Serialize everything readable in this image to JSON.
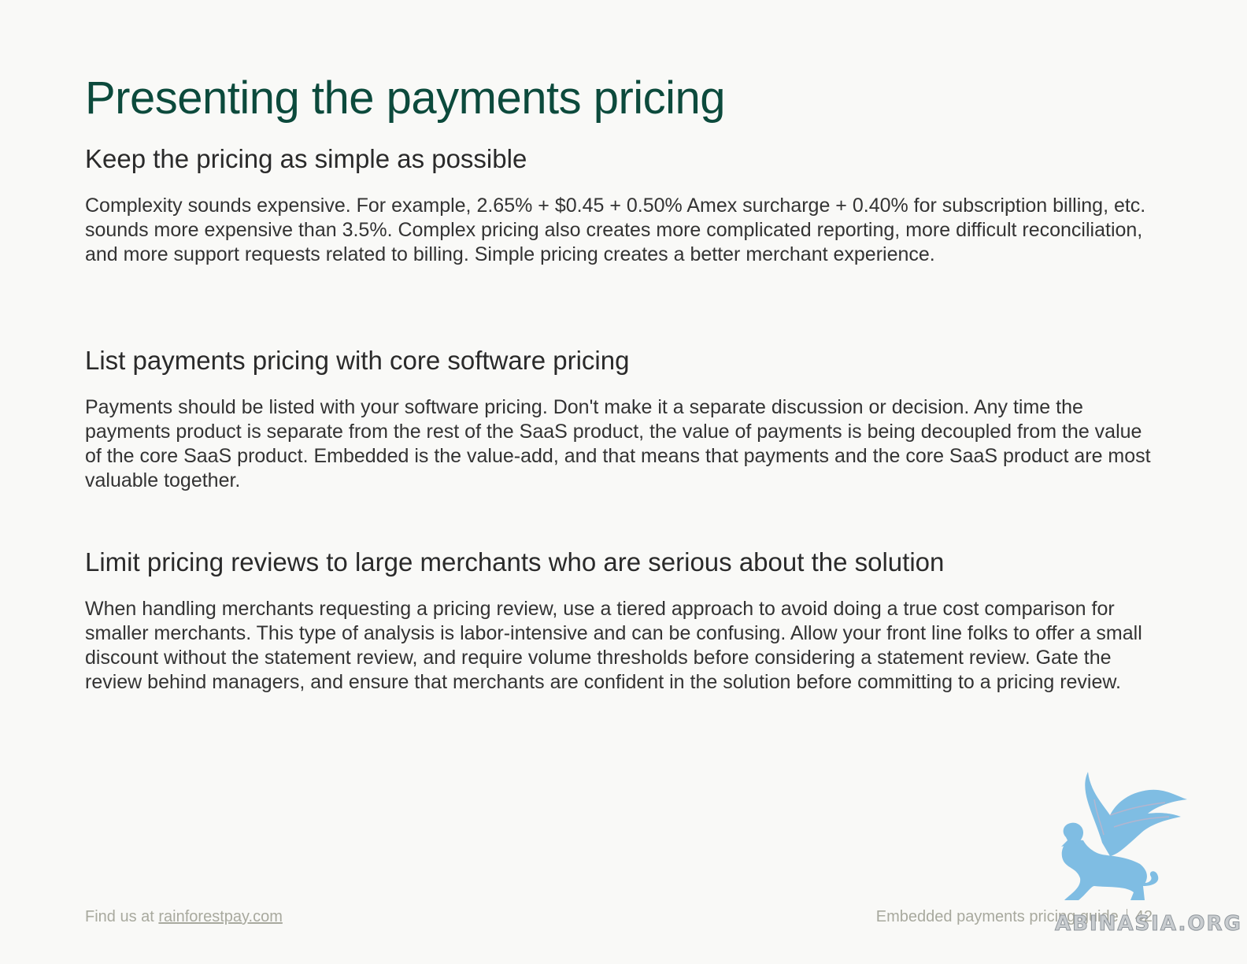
{
  "title": "Presenting the payments pricing",
  "sections": [
    {
      "heading": "Keep the pricing as simple as possible",
      "body": "Complexity sounds expensive. For example, 2.65% + $0.45 + 0.50% Amex surcharge + 0.40% for subscription billing, etc. sounds more expensive than 3.5%. Complex pricing also creates more complicated reporting, more difficult reconciliation, and more support requests related to billing. Simple pricing creates a better merchant experience."
    },
    {
      "heading": "List payments pricing with core software pricing",
      "body": "Payments should be listed with your software pricing. Don't make it a separate discussion or decision. Any time the payments product is separate from the rest of the SaaS product, the value of payments is being decoupled from the value of the core SaaS product. Embedded is the value-add, and that means that payments and the core SaaS product are most valuable together."
    },
    {
      "heading": "Limit pricing reviews to large merchants who are serious about the solution",
      "body": "When handling merchants requesting a pricing review, use a tiered approach to avoid doing a true cost comparison for smaller merchants. This type of analysis is labor-intensive and can be confusing. Allow your front line folks to offer a small discount without the statement review, and require volume thresholds before considering a statement review. Gate the review behind managers, and ensure that merchants are confident in the solution before committing to a pricing review."
    }
  ],
  "footer": {
    "left_prefix": "Find us at ",
    "left_link": "rainforestpay.com",
    "right_label": "Embedded payments pricing guide",
    "page_number": "42"
  },
  "watermark": {
    "text": "ABINASIA.ORG",
    "icon": "griffin-icon",
    "color": "#7fbde3"
  },
  "colors": {
    "title": "#0c4a3c",
    "background": "#f9f9f7",
    "footer": "#a8a99e"
  }
}
